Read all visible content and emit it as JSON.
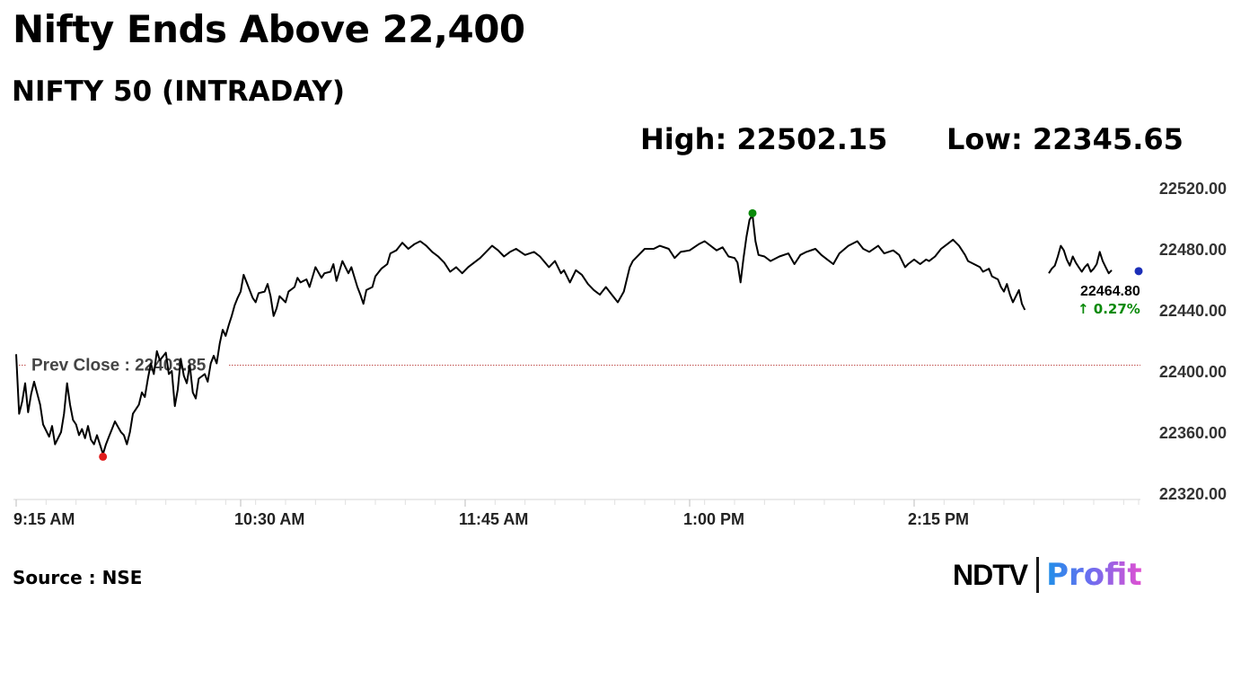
{
  "headline": "Nifty Ends Above 22,400",
  "subheading": "NIFTY 50 (INTRADAY)",
  "stats": {
    "high": "High: 22502.15",
    "low": "Low: 22345.65"
  },
  "source": "Source : NSE",
  "brand": {
    "part1": "NDTV",
    "part2": "Profit"
  },
  "colors": {
    "line": "#000000",
    "high_marker": "#0a8a0a",
    "low_marker": "#e01b1b",
    "last_marker": "#1c2fb8",
    "change_text": "#0a8a0a",
    "prev_close_line": "#c0504d"
  },
  "chart_data": {
    "type": "line",
    "title": "NIFTY 50 (INTRADAY)",
    "x_ticks": [
      "9:15 AM",
      "10:30 AM",
      "11:45 AM",
      "1:00 PM",
      "2:15 PM"
    ],
    "x_range": [
      "09:15",
      "15:30"
    ],
    "y_ticks": [
      "22520.00",
      "22480.00",
      "22440.00",
      "22400.00",
      "22360.00",
      "22320.00"
    ],
    "ylim": [
      22320,
      22520
    ],
    "prev_close": 22403.85,
    "prev_close_label": "Prev Close : 22403.85",
    "high": {
      "time": "13:21",
      "value": 22502.15
    },
    "low": {
      "time": "09:44",
      "value": 22345.65
    },
    "last": {
      "time": "15:30",
      "value": 22464.8,
      "label": "22464.80",
      "change_label": "↑ 0.27%"
    },
    "grid": false,
    "series": [
      {
        "points": [
          [
            "09:15",
            22411
          ],
          [
            "09:16",
            22372
          ],
          [
            "09:17",
            22380
          ],
          [
            "09:18",
            22392
          ],
          [
            "09:19",
            22373
          ],
          [
            "09:20",
            22385
          ],
          [
            "09:21",
            22393
          ],
          [
            "09:23",
            22378
          ],
          [
            "09:24",
            22365
          ],
          [
            "09:26",
            22357
          ],
          [
            "09:27",
            22364
          ],
          [
            "09:28",
            22352
          ],
          [
            "09:30",
            22360
          ],
          [
            "09:31",
            22372
          ],
          [
            "09:32",
            22392
          ],
          [
            "09:33",
            22378
          ],
          [
            "09:34",
            22368
          ],
          [
            "09:35",
            22365
          ],
          [
            "09:36",
            22358
          ],
          [
            "09:37",
            22362
          ],
          [
            "09:38",
            22356
          ],
          [
            "09:39",
            22364
          ],
          [
            "09:40",
            22355
          ],
          [
            "09:41",
            22352
          ],
          [
            "09:42",
            22358
          ],
          [
            "09:44",
            22345.65
          ],
          [
            "09:45",
            22352
          ],
          [
            "09:46",
            22357
          ],
          [
            "09:47",
            22362
          ],
          [
            "09:48",
            22367
          ],
          [
            "09:50",
            22360
          ],
          [
            "09:51",
            22358
          ],
          [
            "09:52",
            22352
          ],
          [
            "09:53",
            22360
          ],
          [
            "09:54",
            22372
          ],
          [
            "09:56",
            22378
          ],
          [
            "09:57",
            22386
          ],
          [
            "09:58",
            22383
          ],
          [
            "09:59",
            22395
          ],
          [
            "10:00",
            22405
          ],
          [
            "10:01",
            22398
          ],
          [
            "10:02",
            22413
          ],
          [
            "10:03",
            22407
          ],
          [
            "10:05",
            22412
          ],
          [
            "10:06",
            22398
          ],
          [
            "10:07",
            22400
          ],
          [
            "10:08",
            22377
          ],
          [
            "10:09",
            22388
          ],
          [
            "10:10",
            22408
          ],
          [
            "10:11",
            22397
          ],
          [
            "10:12",
            22392
          ],
          [
            "10:13",
            22404
          ],
          [
            "10:14",
            22386
          ],
          [
            "10:15",
            22382
          ],
          [
            "10:16",
            22395
          ],
          [
            "10:18",
            22398
          ],
          [
            "10:19",
            22393
          ],
          [
            "10:20",
            22405
          ],
          [
            "10:21",
            22410
          ],
          [
            "10:22",
            22405
          ],
          [
            "10:23",
            22418
          ],
          [
            "10:24",
            22427
          ],
          [
            "10:25",
            22423
          ],
          [
            "10:26",
            22430
          ],
          [
            "10:27",
            22436
          ],
          [
            "10:28",
            22443
          ],
          [
            "10:29",
            22448
          ],
          [
            "10:30",
            22452
          ],
          [
            "10:31",
            22463
          ],
          [
            "10:32",
            22458
          ],
          [
            "10:34",
            22448
          ],
          [
            "10:35",
            22445
          ],
          [
            "10:36",
            22451
          ],
          [
            "10:38",
            22452
          ],
          [
            "10:39",
            22457
          ],
          [
            "10:40",
            22449
          ],
          [
            "10:41",
            22436
          ],
          [
            "10:42",
            22441
          ],
          [
            "10:43",
            22449
          ],
          [
            "10:45",
            22445
          ],
          [
            "10:46",
            22452
          ],
          [
            "10:48",
            22455
          ],
          [
            "10:49",
            22461
          ],
          [
            "10:50",
            22458
          ],
          [
            "10:52",
            22460
          ],
          [
            "10:53",
            22455
          ],
          [
            "10:55",
            22468
          ],
          [
            "10:57",
            22461
          ],
          [
            "10:58",
            22464
          ],
          [
            "11:00",
            22465
          ],
          [
            "11:01",
            22470
          ],
          [
            "11:02",
            22459
          ],
          [
            "11:04",
            22472
          ],
          [
            "11:06",
            22464
          ],
          [
            "11:07",
            22468
          ],
          [
            "11:09",
            22455
          ],
          [
            "11:10",
            22450
          ],
          [
            "11:11",
            22444
          ],
          [
            "11:12",
            22453
          ],
          [
            "11:14",
            22455
          ],
          [
            "11:15",
            22462
          ],
          [
            "11:17",
            22467
          ],
          [
            "11:19",
            22470
          ],
          [
            "11:20",
            22477
          ],
          [
            "11:22",
            22479
          ],
          [
            "11:24",
            22484
          ],
          [
            "11:26",
            22480
          ],
          [
            "11:28",
            22483
          ],
          [
            "11:30",
            22485
          ],
          [
            "11:32",
            22482
          ],
          [
            "11:34",
            22478
          ],
          [
            "11:36",
            22475
          ],
          [
            "11:38",
            22471
          ],
          [
            "11:40",
            22465
          ],
          [
            "11:42",
            22468
          ],
          [
            "11:44",
            22464
          ],
          [
            "11:46",
            22468
          ],
          [
            "11:48",
            22471
          ],
          [
            "11:50",
            22474
          ],
          [
            "11:52",
            22478
          ],
          [
            "11:54",
            22482
          ],
          [
            "11:56",
            22479
          ],
          [
            "11:58",
            22475
          ],
          [
            "12:00",
            22478
          ],
          [
            "12:02",
            22480
          ],
          [
            "12:05",
            22476
          ],
          [
            "12:08",
            22478
          ],
          [
            "12:10",
            22475
          ],
          [
            "12:13",
            22468
          ],
          [
            "12:15",
            22472
          ],
          [
            "12:17",
            22464
          ],
          [
            "12:18",
            22466
          ],
          [
            "12:20",
            22458
          ],
          [
            "12:22",
            22466
          ],
          [
            "12:24",
            22463
          ],
          [
            "12:26",
            22457
          ],
          [
            "12:28",
            22453
          ],
          [
            "12:30",
            22450
          ],
          [
            "12:32",
            22455
          ],
          [
            "12:34",
            22450
          ],
          [
            "12:36",
            22445
          ],
          [
            "12:38",
            22452
          ],
          [
            "12:40",
            22468
          ],
          [
            "12:41",
            22472
          ],
          [
            "12:43",
            22476
          ],
          [
            "12:45",
            22480
          ],
          [
            "12:48",
            22480
          ],
          [
            "12:50",
            22482
          ],
          [
            "12:53",
            22480
          ],
          [
            "12:55",
            22474
          ],
          [
            "12:57",
            22478
          ],
          [
            "13:00",
            22479
          ],
          [
            "13:03",
            22483
          ],
          [
            "13:05",
            22485
          ],
          [
            "13:07",
            22482
          ],
          [
            "13:09",
            22479
          ],
          [
            "13:11",
            22481
          ],
          [
            "13:13",
            22475
          ],
          [
            "13:15",
            22474
          ],
          [
            "13:16",
            22471
          ],
          [
            "13:17",
            22458
          ],
          [
            "13:18",
            22474
          ],
          [
            "13:19",
            22488
          ],
          [
            "13:20",
            22499
          ],
          [
            "13:21",
            22502.15
          ],
          [
            "13:22",
            22485
          ],
          [
            "13:23",
            22476
          ],
          [
            "13:25",
            22475
          ],
          [
            "13:27",
            22472
          ],
          [
            "13:30",
            22475
          ],
          [
            "13:33",
            22477
          ],
          [
            "13:35",
            22470
          ],
          [
            "13:37",
            22476
          ],
          [
            "13:39",
            22478
          ],
          [
            "13:42",
            22480
          ],
          [
            "13:44",
            22476
          ],
          [
            "13:46",
            22473
          ],
          [
            "13:48",
            22470
          ],
          [
            "13:50",
            22477
          ],
          [
            "13:53",
            22482
          ],
          [
            "13:56",
            22485
          ],
          [
            "13:58",
            22480
          ],
          [
            "14:00",
            22478
          ],
          [
            "14:03",
            22482
          ],
          [
            "14:05",
            22477
          ],
          [
            "14:08",
            22479
          ],
          [
            "14:10",
            22476
          ],
          [
            "14:12",
            22468
          ],
          [
            "14:13",
            22470
          ],
          [
            "14:15",
            22473
          ],
          [
            "14:17",
            22470
          ],
          [
            "14:19",
            22473
          ],
          [
            "14:20",
            22472
          ],
          [
            "14:22",
            22475
          ],
          [
            "14:24",
            22480
          ],
          [
            "14:26",
            22483
          ],
          [
            "14:28",
            22486
          ],
          [
            "14:30",
            22482
          ],
          [
            "14:32",
            22476
          ],
          [
            "14:33",
            22472
          ],
          [
            "14:35",
            22470
          ],
          [
            "14:37",
            22468
          ],
          [
            "14:38",
            22465
          ],
          [
            "14:40",
            22467
          ],
          [
            "14:41",
            22462
          ],
          [
            "14:43",
            22460
          ],
          [
            "14:44",
            22455
          ],
          [
            "14:45",
            22452
          ],
          [
            "14:46",
            22457
          ],
          [
            "14:47",
            22450
          ],
          [
            "14:48",
            22445
          ],
          [
            "14:50",
            22453
          ],
          [
            "14:51",
            22444
          ],
          [
            "14:52",
            22440
          ]
        ]
      },
      {
        "points": [
          [
            "15:00",
            22464
          ],
          [
            "15:01",
            22467
          ],
          [
            "15:02",
            22469
          ],
          [
            "15:03",
            22475
          ],
          [
            "15:04",
            22482
          ],
          [
            "15:05",
            22479
          ],
          [
            "15:06",
            22473
          ],
          [
            "15:07",
            22469
          ],
          [
            "15:08",
            22475
          ],
          [
            "15:09",
            22471
          ],
          [
            "15:10",
            22468
          ],
          [
            "15:11",
            22465
          ],
          [
            "15:12",
            22468
          ],
          [
            "15:13",
            22470
          ],
          [
            "15:14",
            22465
          ],
          [
            "15:15",
            22467
          ],
          [
            "15:16",
            22470
          ],
          [
            "15:17",
            22478
          ],
          [
            "15:18",
            22472
          ],
          [
            "15:19",
            22468
          ],
          [
            "15:20",
            22464
          ],
          [
            "15:21",
            22466
          ]
        ]
      }
    ]
  }
}
